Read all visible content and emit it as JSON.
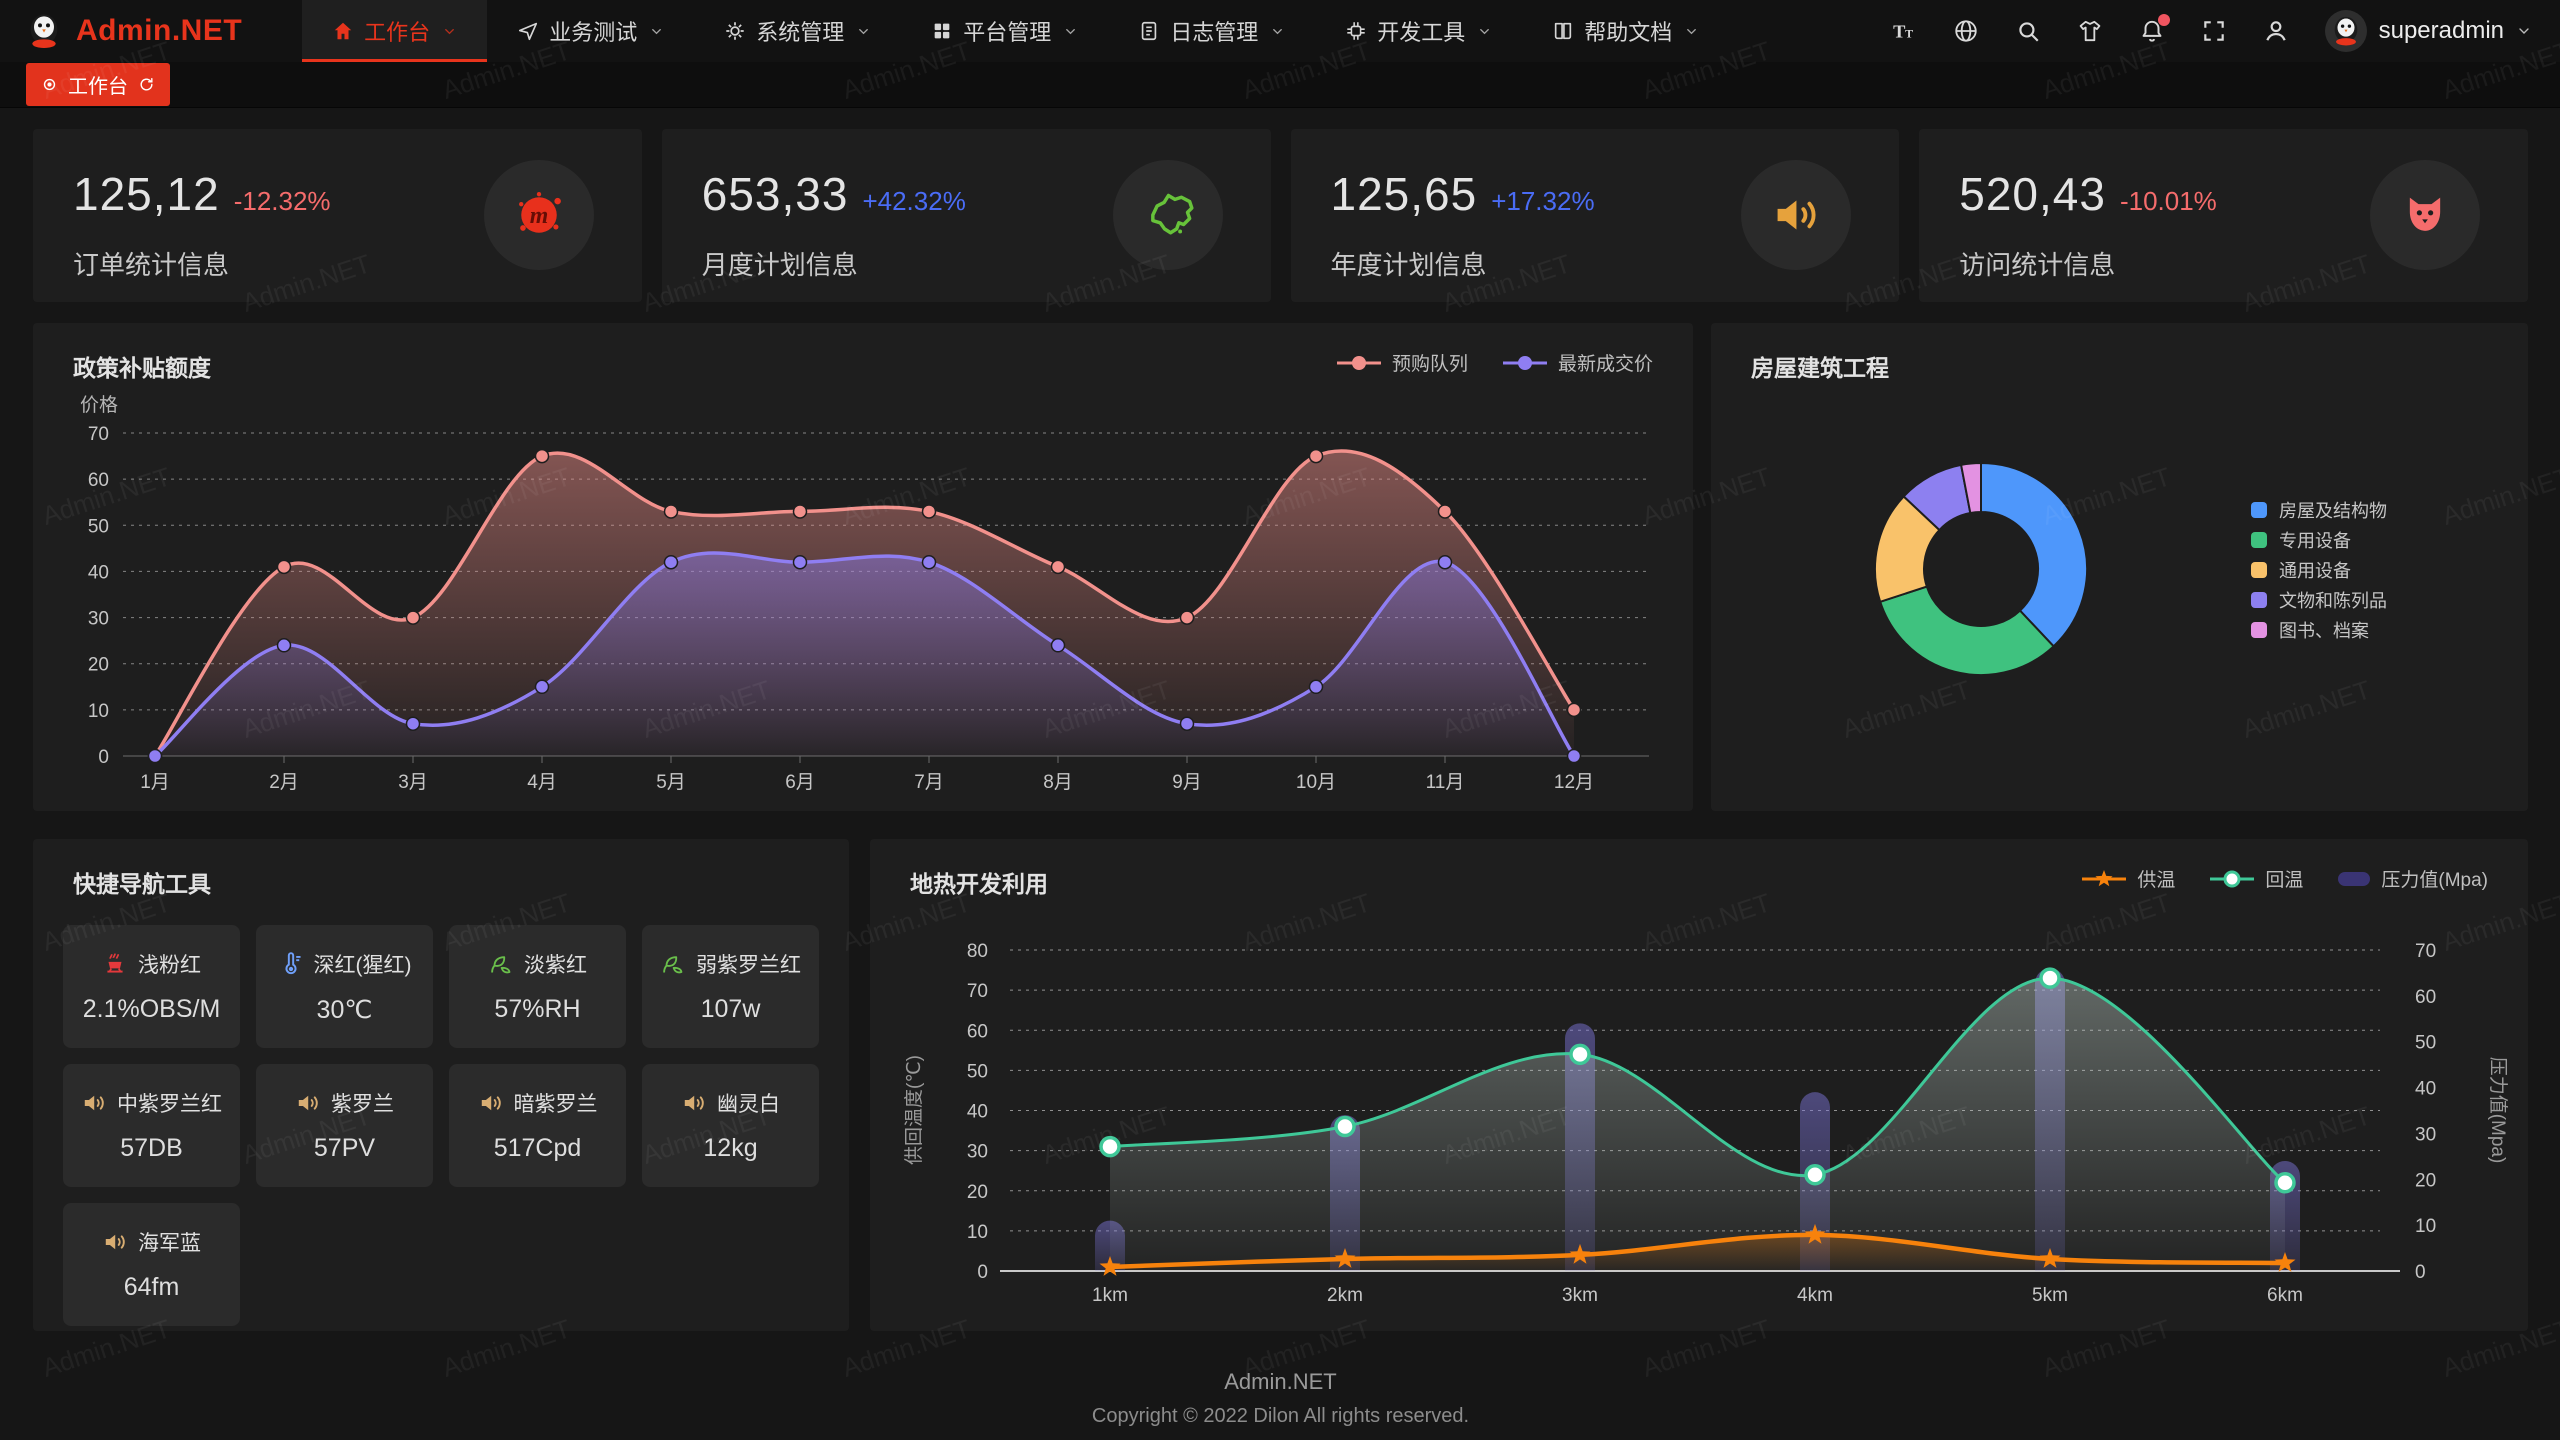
{
  "brand": {
    "name": "Admin.NET",
    "accent_color": "#e8341c"
  },
  "nav": {
    "items": [
      {
        "label": "工作台",
        "icon": "home-icon",
        "active": true,
        "has_dropdown": true
      },
      {
        "label": "业务测试",
        "icon": "send-icon",
        "active": false,
        "has_dropdown": true
      },
      {
        "label": "系统管理",
        "icon": "gear-icon",
        "active": false,
        "has_dropdown": true
      },
      {
        "label": "平台管理",
        "icon": "grid-icon",
        "active": false,
        "has_dropdown": true
      },
      {
        "label": "日志管理",
        "icon": "doc-icon",
        "active": false,
        "has_dropdown": true
      },
      {
        "label": "开发工具",
        "icon": "chip-icon",
        "active": false,
        "has_dropdown": true
      },
      {
        "label": "帮助文档",
        "icon": "book-icon",
        "active": false,
        "has_dropdown": true
      }
    ]
  },
  "header_tools": [
    {
      "name": "font-size",
      "icon": "font-size-icon",
      "badge": false
    },
    {
      "name": "language",
      "icon": "language-icon",
      "badge": false
    },
    {
      "name": "search",
      "icon": "search-icon",
      "badge": false
    },
    {
      "name": "theme",
      "icon": "shirt-icon",
      "badge": false
    },
    {
      "name": "notifications",
      "icon": "bell-icon",
      "badge": true
    },
    {
      "name": "fullscreen",
      "icon": "fullscreen-icon",
      "badge": false
    },
    {
      "name": "profile",
      "icon": "user-icon",
      "badge": false
    }
  ],
  "user": {
    "name": "superadmin"
  },
  "tabbar": {
    "active_tab": "工作台"
  },
  "stat_cards": [
    {
      "value": "125,12",
      "delta": "-12.32%",
      "delta_color": "#f56c6c",
      "label": "订单统计信息",
      "icon": "meetup-splat-icon",
      "icon_color": "#e8301c"
    },
    {
      "value": "653,33",
      "delta": "+42.32%",
      "delta_color": "#4a6cf5",
      "label": "月度计划信息",
      "icon": "china-map-icon",
      "icon_color": "#67c23a"
    },
    {
      "value": "125,65",
      "delta": "+17.32%",
      "delta_color": "#4a6cf5",
      "label": "年度计划信息",
      "icon": "speaker-icon",
      "icon_color": "#e6a23c"
    },
    {
      "value": "520,43",
      "delta": "-10.01%",
      "delta_color": "#f56c6c",
      "label": "访问统计信息",
      "icon": "cat-icon",
      "icon_color": "#f56c6c"
    }
  ],
  "chart_data": [
    {
      "id": "policy",
      "type": "line",
      "title": "政策补贴额度",
      "ylabel": "价格",
      "categories": [
        "1月",
        "2月",
        "3月",
        "4月",
        "5月",
        "6月",
        "7月",
        "8月",
        "9月",
        "10月",
        "11月",
        "12月"
      ],
      "ylim": [
        0,
        70
      ],
      "ytick": 10,
      "grid": "dashed",
      "legend_position": "top-right",
      "series": [
        {
          "name": "预购队列",
          "color": "#f2918c",
          "smooth": true,
          "area": true,
          "values": [
            0,
            41,
            30,
            65,
            53,
            53,
            53,
            41,
            30,
            65,
            53,
            10
          ]
        },
        {
          "name": "最新成交价",
          "color": "#8f7ef2",
          "smooth": true,
          "area": true,
          "values": [
            0,
            24,
            7,
            15,
            42,
            42,
            42,
            24,
            7,
            15,
            42,
            0
          ]
        }
      ]
    },
    {
      "id": "housing",
      "type": "pie",
      "title": "房屋建筑工程",
      "donut": true,
      "legend_position": "right",
      "labels": [
        "房屋及结构物",
        "专用设备",
        "通用设备",
        "文物和陈列品",
        "图书、档案"
      ],
      "values": [
        38,
        32,
        17,
        10,
        3
      ],
      "colors": [
        "#4e97fb",
        "#3fc27f",
        "#f9c26a",
        "#8d80f0",
        "#e392e2"
      ]
    },
    {
      "id": "geothermal",
      "type": "mixed",
      "title": "地热开发利用",
      "categories": [
        "1km",
        "2km",
        "3km",
        "4km",
        "5km",
        "6km"
      ],
      "left_axis": {
        "label": "供回温度(℃)",
        "lim": [
          0,
          80
        ],
        "tick": 10
      },
      "right_axis": {
        "label": "压力值(Mpa)",
        "lim": [
          0,
          70
        ],
        "tick": 10
      },
      "grid": "dashed",
      "legend_position": "top-right",
      "series": [
        {
          "name": "供温",
          "type": "line",
          "axis": "left",
          "color": "#f7820c",
          "marker": "star",
          "values": [
            1,
            3,
            4,
            9,
            3,
            2
          ]
        },
        {
          "name": "回温",
          "type": "line",
          "axis": "left",
          "color": "#3fc898",
          "marker": "circle",
          "values": [
            31,
            36,
            54,
            24,
            73,
            22
          ]
        },
        {
          "name": "压力值(Mpa)",
          "type": "bar",
          "axis": "right",
          "color": "#5a54b4",
          "values": [
            11,
            34,
            54,
            39,
            66,
            24
          ]
        }
      ]
    }
  ],
  "quick_nav": {
    "title": "快捷导航工具",
    "items": [
      {
        "name": "浅粉红",
        "value": "2.1%OBS/M",
        "icon": "burner-icon",
        "icon_color": "#e4393c"
      },
      {
        "name": "深红(猩红)",
        "value": "30℃",
        "icon": "thermometer-icon",
        "icon_color": "#6f9ff8"
      },
      {
        "name": "淡紫红",
        "value": "57%RH",
        "icon": "leaf-icon",
        "icon_color": "#6abf4b"
      },
      {
        "name": "弱紫罗兰红",
        "value": "107w",
        "icon": "leaf-icon",
        "icon_color": "#6abf4b"
      },
      {
        "name": "中紫罗兰红",
        "value": "57DB",
        "icon": "speaker-icon",
        "icon_color": "#d8ad72"
      },
      {
        "name": "紫罗兰",
        "value": "57PV",
        "icon": "speaker-icon",
        "icon_color": "#d8ad72"
      },
      {
        "name": "暗紫罗兰",
        "value": "517Cpd",
        "icon": "speaker-icon",
        "icon_color": "#d8ad72"
      },
      {
        "name": "幽灵白",
        "value": "12kg",
        "icon": "speaker-icon",
        "icon_color": "#d8ad72"
      },
      {
        "name": "海军蓝",
        "value": "64fm",
        "icon": "speaker-icon",
        "icon_color": "#d8ad72"
      }
    ]
  },
  "footer": {
    "line1": "Admin.NET",
    "line2": "Copyright © 2022 Dilon All rights reserved."
  },
  "watermark": {
    "text": "Admin.NET"
  }
}
